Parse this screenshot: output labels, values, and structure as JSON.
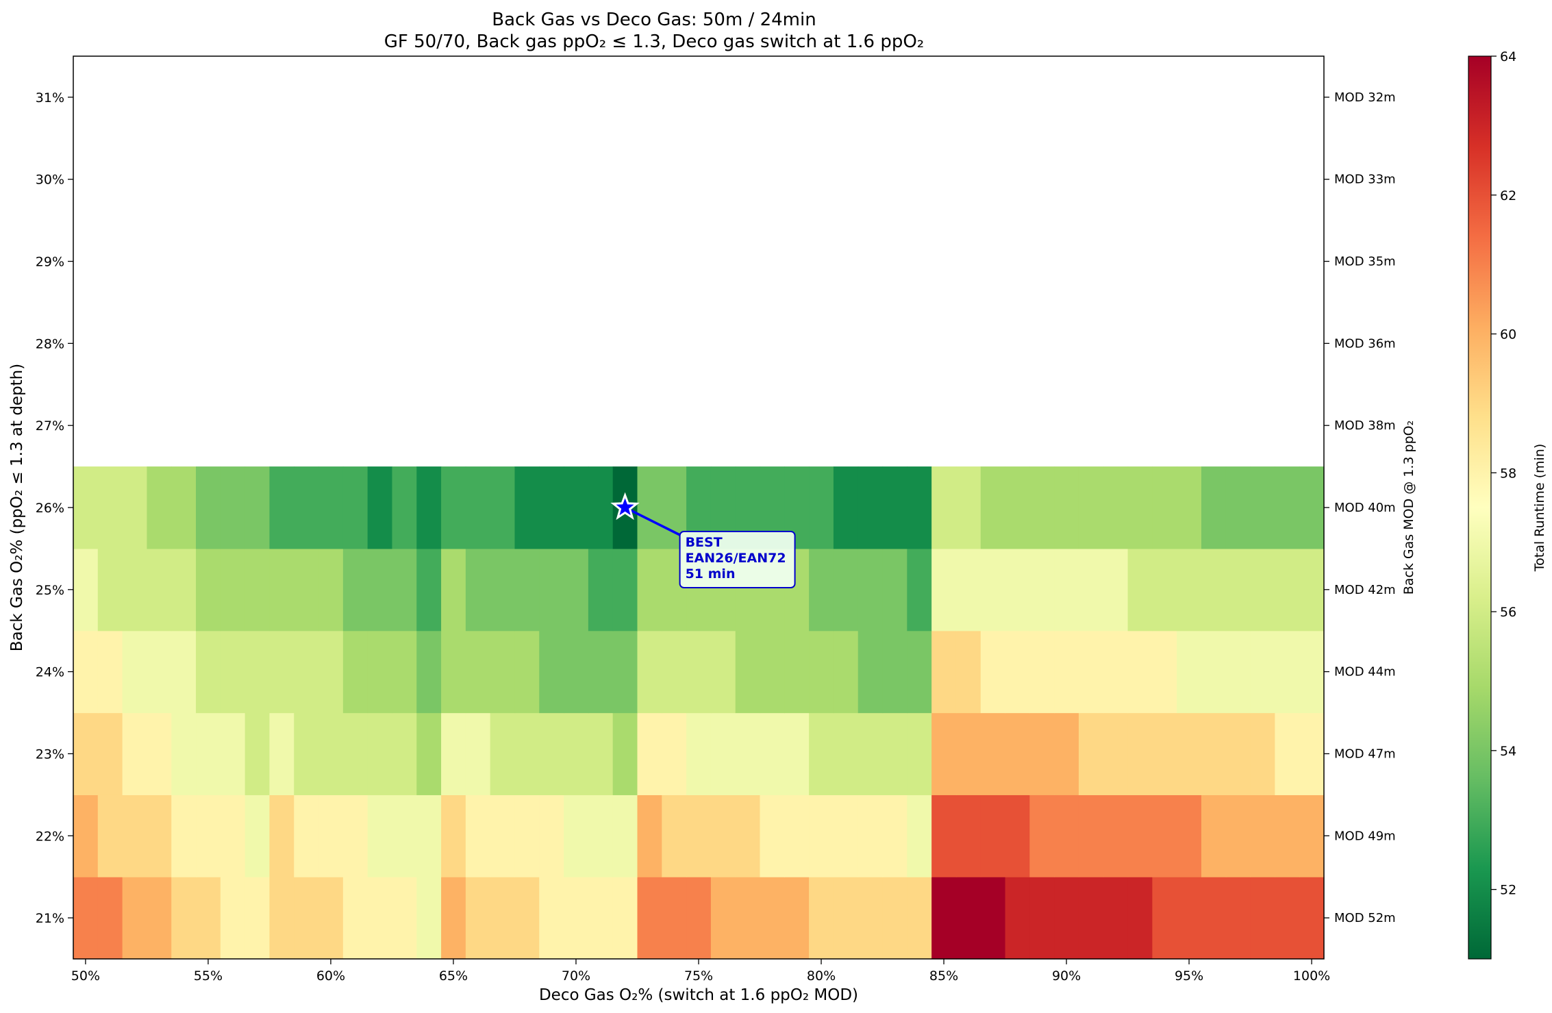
{
  "chart_data": {
    "type": "heatmap",
    "title": "Back Gas vs Deco Gas: 50m / 24min",
    "subtitle": "GF 50/70, Back gas ppO₂ ≤ 1.3, Deco gas switch at 1.6 ppO₂",
    "xlabel": "Deco Gas O₂% (switch at 1.6 ppO₂ MOD)",
    "ylabel": "Back Gas O₂% (ppO₂ ≤ 1.3 at depth)",
    "y2label": "Back Gas MOD @ 1.3 ppO₂",
    "colorbar_label": "Total Runtime (min)",
    "colormap": "RdYlGn_r",
    "color_range": [
      51,
      64
    ],
    "colorbar_ticks": [
      "52",
      "54",
      "56",
      "58",
      "60",
      "62",
      "64"
    ],
    "x_values": [
      50,
      51,
      52,
      53,
      54,
      55,
      56,
      57,
      58,
      59,
      60,
      61,
      62,
      63,
      64,
      65,
      66,
      67,
      68,
      69,
      70,
      71,
      72,
      73,
      74,
      75,
      76,
      77,
      78,
      79,
      80,
      81,
      82,
      83,
      84,
      85,
      86,
      87,
      88,
      89,
      90,
      91,
      92,
      93,
      94,
      95,
      96,
      97,
      98,
      99,
      100
    ],
    "x_tick_labels": [
      "50%",
      "55%",
      "60%",
      "65%",
      "70%",
      "75%",
      "80%",
      "85%",
      "90%",
      "95%",
      "100%"
    ],
    "y_values": [
      21,
      22,
      23,
      24,
      25,
      26,
      27,
      28,
      29,
      30,
      31
    ],
    "y_tick_labels": [
      "21%",
      "22%",
      "23%",
      "24%",
      "25%",
      "26%",
      "27%",
      "28%",
      "29%",
      "30%",
      "31%"
    ],
    "y2_tick_labels": [
      "MOD 52m",
      "MOD 49m",
      "MOD 47m",
      "MOD 44m",
      "MOD 42m",
      "MOD 40m",
      "MOD 38m",
      "MOD 36m",
      "MOD 35m",
      "MOD 33m",
      "MOD 32m"
    ],
    "z_runtime_by_back_gas": {
      "21": [
        61,
        61,
        60,
        60,
        59,
        59,
        58,
        58,
        59,
        59,
        59,
        58,
        58,
        58,
        57,
        60,
        59,
        59,
        59,
        58,
        58,
        58,
        58,
        61,
        61,
        61,
        60,
        60,
        60,
        60,
        59,
        59,
        59,
        59,
        59,
        64,
        64,
        64,
        63,
        63,
        63,
        63,
        63,
        63,
        62,
        62,
        62,
        62,
        62,
        62,
        62
      ],
      "22": [
        60,
        59,
        59,
        59,
        58,
        58,
        58,
        57,
        59,
        58,
        58,
        58,
        57,
        57,
        57,
        59,
        58,
        58,
        58,
        58,
        57,
        57,
        57,
        60,
        59,
        59,
        59,
        59,
        58,
        58,
        58,
        58,
        58,
        58,
        57,
        62,
        62,
        62,
        62,
        61,
        61,
        61,
        61,
        61,
        61,
        61,
        60,
        60,
        60,
        60,
        60
      ],
      "23": [
        59,
        59,
        58,
        58,
        57,
        57,
        57,
        56,
        57,
        56,
        56,
        56,
        56,
        56,
        55,
        57,
        57,
        56,
        56,
        56,
        56,
        56,
        55,
        58,
        58,
        57,
        57,
        57,
        57,
        57,
        56,
        56,
        56,
        56,
        56,
        60,
        60,
        60,
        60,
        60,
        60,
        59,
        59,
        59,
        59,
        59,
        59,
        59,
        59,
        58,
        58
      ],
      "24": [
        58,
        58,
        57,
        57,
        57,
        56,
        56,
        56,
        56,
        56,
        56,
        55,
        55,
        55,
        54,
        55,
        55,
        55,
        55,
        54,
        54,
        54,
        54,
        56,
        56,
        56,
        56,
        55,
        55,
        55,
        55,
        55,
        54,
        54,
        54,
        59,
        59,
        58,
        58,
        58,
        58,
        58,
        58,
        58,
        58,
        57,
        57,
        57,
        57,
        57,
        57
      ],
      "25": [
        57,
        56,
        56,
        56,
        56,
        55,
        55,
        55,
        55,
        55,
        55,
        54,
        54,
        54,
        53,
        55,
        54,
        54,
        54,
        54,
        54,
        53,
        53,
        55,
        55,
        55,
        55,
        55,
        55,
        55,
        54,
        54,
        54,
        54,
        53,
        57,
        57,
        57,
        57,
        57,
        57,
        57,
        57,
        56,
        56,
        56,
        56,
        56,
        56,
        56,
        56
      ],
      "26": [
        56,
        56,
        56,
        55,
        55,
        54,
        54,
        54,
        53,
        53,
        53,
        53,
        52,
        53,
        52,
        53,
        53,
        53,
        52,
        52,
        52,
        52,
        51,
        54,
        54,
        53,
        53,
        53,
        53,
        53,
        53,
        52,
        52,
        52,
        52,
        56,
        56,
        55,
        55,
        55,
        55,
        55,
        55,
        55,
        55,
        55,
        54,
        54,
        54,
        54,
        54
      ],
      "27": null,
      "28": null,
      "29": null,
      "30": null,
      "31": null
    },
    "best": {
      "x": 72,
      "y": 26,
      "runtime": 51
    },
    "annotation": {
      "line1": "BEST",
      "line2": "EAN26/EAN72",
      "line3": "51 min"
    }
  }
}
